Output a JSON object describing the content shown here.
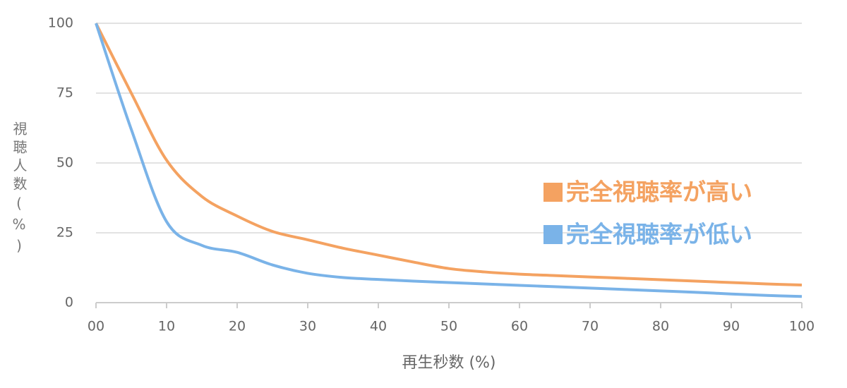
{
  "chart_data": {
    "type": "line",
    "y_label": "視聴人数(%)",
    "x_label": "再生秒数 (%)",
    "x": [
      0,
      5,
      10,
      15,
      20,
      25,
      30,
      35,
      40,
      45,
      50,
      55,
      60,
      65,
      70,
      75,
      80,
      85,
      90,
      95,
      100
    ],
    "series": [
      {
        "name": "完全視聴率が高い",
        "color": "#f4a261",
        "values": [
          100,
          75,
          51,
          38,
          31,
          25.5,
          22.5,
          19.5,
          17,
          14.5,
          12.2,
          11,
          10.2,
          9.7,
          9.2,
          8.7,
          8.2,
          7.7,
          7.2,
          6.7,
          6.3
        ]
      },
      {
        "name": "完全視聴率が低い",
        "color": "#7ab3e8",
        "values": [
          100,
          62,
          29,
          20.5,
          18,
          13.5,
          10.5,
          9,
          8.3,
          7.7,
          7.2,
          6.7,
          6.2,
          5.7,
          5.2,
          4.7,
          4.2,
          3.7,
          3.1,
          2.6,
          2.2
        ]
      }
    ],
    "xlim": [
      0,
      100
    ],
    "xticks": [
      {
        "value": 0,
        "label": "00"
      },
      10,
      20,
      30,
      40,
      50,
      60,
      70,
      80,
      90,
      100
    ],
    "ylim": [
      0,
      100
    ],
    "yticks": [
      0,
      25,
      50,
      75,
      100
    ],
    "grid": true,
    "legend": "right"
  }
}
